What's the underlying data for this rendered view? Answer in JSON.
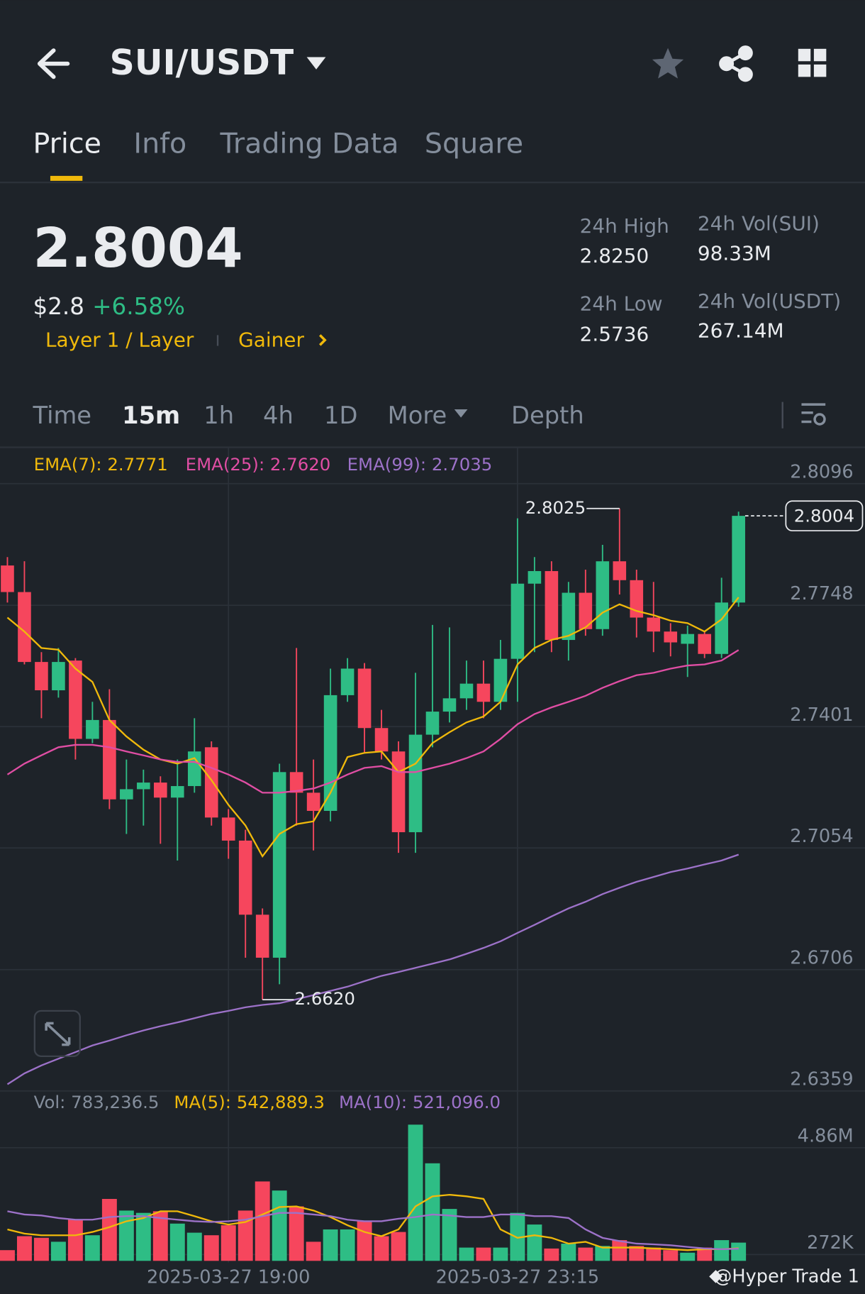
{
  "header": {
    "title": "SUI/USDT"
  },
  "tabs": [
    "Price",
    "Info",
    "Trading Data",
    "Square"
  ],
  "ticker": {
    "price": "2.8004",
    "usd_price": "$2.8",
    "change": "+6.58%",
    "tags": [
      "Layer 1 / Layer",
      "Gainer"
    ],
    "stats": [
      {
        "label": "24h High",
        "value": "2.8250"
      },
      {
        "label": "24h Vol(SUI)",
        "value": "98.33M"
      },
      {
        "label": "24h Low",
        "value": "2.5736"
      },
      {
        "label": "24h Vol(USDT)",
        "value": "267.14M"
      }
    ]
  },
  "intervals": [
    "Time",
    "15m",
    "1h",
    "4h",
    "1D",
    "More",
    "Depth"
  ],
  "watermark": "@Hyper Trade 1",
  "chart_data": [
    {
      "type": "candlestick",
      "up_color": "#2ebd85",
      "down_color": "#f6465d",
      "grid": true,
      "categories": [
        null,
        null,
        null,
        null,
        null,
        null,
        null,
        null,
        null,
        null,
        null,
        null,
        null,
        "2025-03-27 19:00",
        null,
        null,
        null,
        null,
        null,
        null,
        null,
        null,
        null,
        null,
        null,
        null,
        null,
        null,
        null,
        null,
        "2025-03-27 23:15",
        null,
        null,
        null,
        null,
        null,
        null,
        null,
        null,
        null,
        null,
        null,
        null,
        null
      ],
      "open": [
        2.7862,
        2.7786,
        2.7586,
        2.7505,
        2.759,
        2.7366,
        2.742,
        2.7193,
        2.7222,
        2.7241,
        2.7198,
        2.7231,
        2.7342,
        2.7141,
        2.7075,
        2.6863,
        2.674,
        2.7271,
        2.7212,
        2.716,
        2.7491,
        2.7567,
        2.7397,
        2.733,
        2.7099,
        2.7378,
        2.7444,
        2.7482,
        2.7524,
        2.7472,
        2.7595,
        2.781,
        2.7846,
        2.7649,
        2.7784,
        2.768,
        2.7874,
        2.782,
        2.7713,
        2.7673,
        2.7638,
        2.7666,
        2.7609,
        2.7756
      ],
      "high": [
        2.7886,
        2.7874,
        2.7614,
        2.7626,
        2.7597,
        2.7472,
        2.7508,
        2.7307,
        2.7278,
        2.7259,
        2.7307,
        2.7425,
        2.7359,
        2.7165,
        2.7106,
        2.6881,
        2.7295,
        2.7626,
        2.7307,
        2.7567,
        2.7597,
        2.7583,
        2.7449,
        2.7359,
        2.7555,
        2.7692,
        2.7685,
        2.759,
        2.759,
        2.7649,
        2.7997,
        2.7886,
        2.7874,
        2.7815,
        2.785,
        2.7921,
        2.8025,
        2.785,
        2.7815,
        2.7697,
        2.769,
        2.7673,
        2.7827,
        2.8016
      ],
      "low": [
        2.7756,
        2.7579,
        2.7425,
        2.7484,
        2.7307,
        2.7354,
        2.7165,
        2.7094,
        2.7118,
        2.7066,
        2.7018,
        2.7212,
        2.7118,
        2.7023,
        2.674,
        2.662,
        2.6664,
        2.7118,
        2.7047,
        2.713,
        2.7472,
        2.7326,
        2.7307,
        2.704,
        2.704,
        2.7342,
        2.7413,
        2.7449,
        2.7425,
        2.7449,
        2.7472,
        2.7614,
        2.7614,
        2.759,
        2.7661,
        2.7661,
        2.7779,
        2.7656,
        2.7614,
        2.7602,
        2.7543,
        2.7597,
        2.7597,
        2.7744
      ],
      "close": [
        2.7786,
        2.7586,
        2.7505,
        2.7586,
        2.7366,
        2.742,
        2.7193,
        2.7222,
        2.7241,
        2.7198,
        2.7231,
        2.733,
        2.7141,
        2.7075,
        2.6863,
        2.674,
        2.7271,
        2.7212,
        2.716,
        2.7491,
        2.7567,
        2.7397,
        2.733,
        2.7099,
        2.7378,
        2.7444,
        2.7482,
        2.7524,
        2.7472,
        2.7595,
        2.781,
        2.7846,
        2.7649,
        2.7784,
        2.768,
        2.7874,
        2.782,
        2.7713,
        2.7673,
        2.7642,
        2.7666,
        2.7609,
        2.7756,
        2.8004
      ],
      "annotations": {
        "high": "2.8025",
        "low": "2.6620",
        "last": "2.8004"
      },
      "lines": [
        {
          "name": "EMA(7): 2.7771",
          "color": "#f0b90b",
          "values": [
            2.7713,
            2.7673,
            2.7626,
            2.7621,
            2.7567,
            2.7529,
            2.742,
            2.7373,
            2.7335,
            2.7307,
            2.7295,
            2.7311,
            2.7248,
            2.7177,
            2.7118,
            2.703,
            2.7094,
            2.7122,
            2.713,
            2.7212,
            2.7314,
            2.7326,
            2.733,
            2.7271,
            2.7295,
            2.7354,
            2.7385,
            2.7413,
            2.743,
            2.7472,
            2.7579,
            2.7626,
            2.7649,
            2.7661,
            2.7685,
            2.7727,
            2.7751,
            2.7732,
            2.772,
            2.7704,
            2.7697,
            2.7673,
            2.7708,
            2.7771
          ]
        },
        {
          "name": "EMA(25): 2.7620",
          "color": "#e04ea4",
          "values": [
            2.7264,
            2.7295,
            2.7319,
            2.7342,
            2.7349,
            2.7349,
            2.7342,
            2.733,
            2.7319,
            2.7307,
            2.73,
            2.73,
            2.7283,
            2.7264,
            2.7241,
            2.7212,
            2.7212,
            2.7217,
            2.7224,
            2.7241,
            2.7264,
            2.7283,
            2.7288,
            2.7271,
            2.7271,
            2.7283,
            2.7295,
            2.7311,
            2.733,
            2.7366,
            2.7408,
            2.7437,
            2.7456,
            2.7472,
            2.7489,
            2.7512,
            2.7531,
            2.7548,
            2.7555,
            2.7567,
            2.7576,
            2.7579,
            2.759,
            2.762
          ]
        },
        {
          "name": "EMA(99): 2.7035",
          "color": "#9d72c9",
          "values": [
            2.6378,
            2.6409,
            2.6432,
            2.6451,
            2.647,
            2.6489,
            2.6503,
            2.6518,
            2.6532,
            2.6544,
            2.6555,
            2.6567,
            2.6579,
            2.6588,
            2.6598,
            2.6605,
            2.661,
            2.6621,
            2.6633,
            2.6645,
            2.6657,
            2.6673,
            2.6688,
            2.6699,
            2.6711,
            2.6723,
            2.6735,
            2.6751,
            2.6768,
            2.6787,
            2.6811,
            2.6834,
            2.6858,
            2.6881,
            2.69,
            2.6922,
            2.694,
            2.6957,
            2.6971,
            2.6985,
            2.6995,
            2.7007,
            2.7018,
            2.7035
          ]
        }
      ],
      "ylim": [
        2.6359,
        2.82
      ],
      "yticks": [
        2.8096,
        2.7748,
        2.7401,
        2.7054,
        2.6706,
        2.6359
      ]
    },
    {
      "type": "bar",
      "name": "Vol: 783,236.5",
      "values": [
        460000,
        1060000,
        990000,
        820000,
        1770000,
        1100000,
        2660000,
        2160000,
        2060000,
        2130000,
        1600000,
        1210000,
        1100000,
        1530000,
        2160000,
        3410000,
        3020000,
        2340000,
        820000,
        1350000,
        1350000,
        1700000,
        1060000,
        1240000,
        5850000,
        4190000,
        2230000,
        570000,
        570000,
        570000,
        2060000,
        1560000,
        530000,
        740000,
        570000,
        640000,
        890000,
        640000,
        570000,
        460000,
        350000,
        570000,
        890000,
        783236.5
      ],
      "lines": [
        {
          "name": "MA(5): 542,889.3",
          "color": "#f0b90b",
          "values": [
            1350000,
            1170000,
            1100000,
            1100000,
            1100000,
            1240000,
            1450000,
            1700000,
            1840000,
            2130000,
            2130000,
            1920000,
            1700000,
            1560000,
            1670000,
            1990000,
            2310000,
            2340000,
            2160000,
            1880000,
            1530000,
            1240000,
            1060000,
            1350000,
            2340000,
            2770000,
            2840000,
            2770000,
            2660000,
            1350000,
            990000,
            1100000,
            990000,
            740000,
            820000,
            570000,
            570000,
            570000,
            530000,
            500000,
            460000,
            500000,
            500000,
            542889.3
          ]
        },
        {
          "name": "MA(10): 521,096.0",
          "color": "#9d72c9",
          "values": [
            2130000,
            1990000,
            1950000,
            1840000,
            1770000,
            1770000,
            1880000,
            1920000,
            1920000,
            1840000,
            1770000,
            1700000,
            1670000,
            1700000,
            1770000,
            1920000,
            2060000,
            2060000,
            1990000,
            1920000,
            1770000,
            1700000,
            1700000,
            1810000,
            1880000,
            1990000,
            1950000,
            1880000,
            1880000,
            1990000,
            1990000,
            1920000,
            1920000,
            1840000,
            1350000,
            990000,
            850000,
            740000,
            710000,
            670000,
            600000,
            530000,
            500000,
            521096
          ]
        }
      ],
      "ylim": [
        0,
        7300000
      ],
      "yticks": [
        {
          "value": 4860000,
          "label": "4.86M"
        },
        {
          "value": 272000,
          "label": "272K"
        }
      ]
    }
  ]
}
